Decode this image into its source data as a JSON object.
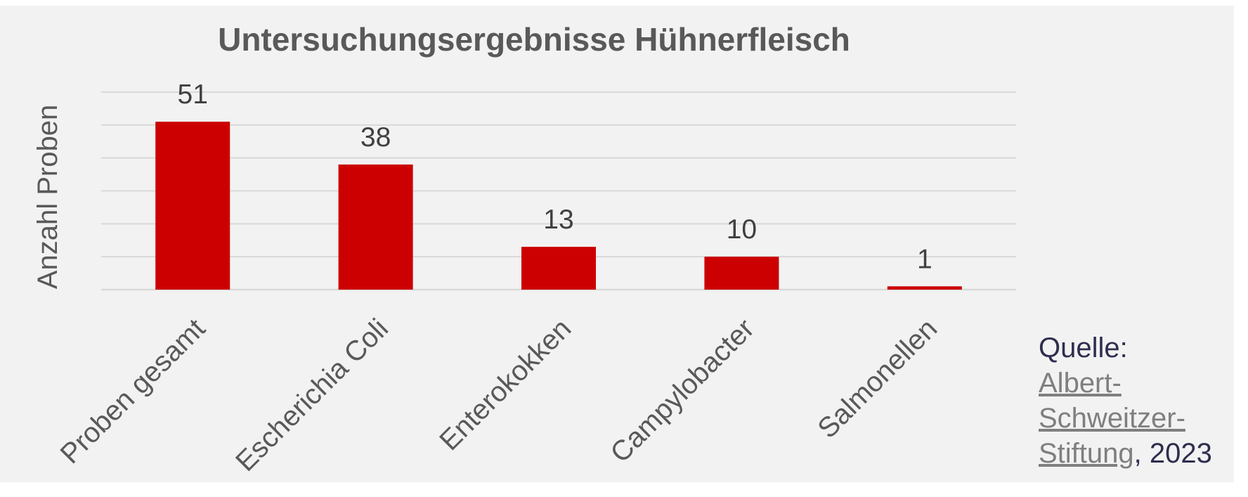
{
  "chart_data": {
    "type": "bar",
    "title": "Untersuchungsergebnisse Hühnerfleisch",
    "xlabel": "",
    "ylabel": "Anzahl Proben",
    "categories": [
      "Proben gesamt",
      "Escherichia Coli",
      "Enterokokken",
      "Campylobacter",
      "Salmonellen"
    ],
    "values": [
      51,
      38,
      13,
      10,
      1
    ],
    "ylim": [
      0,
      60
    ],
    "grid": true,
    "bar_color": "#cc0000",
    "background_color": "#f2f2f2",
    "gridline_color": "#d9d9d9"
  },
  "source": {
    "prefix": "Quelle:",
    "link_lines": [
      "Albert-",
      "Schweitzer-",
      "Stiftung"
    ],
    "suffix": ", 2023",
    "link_color": "#7f7f7f",
    "text_color": "#2e2e4f"
  }
}
